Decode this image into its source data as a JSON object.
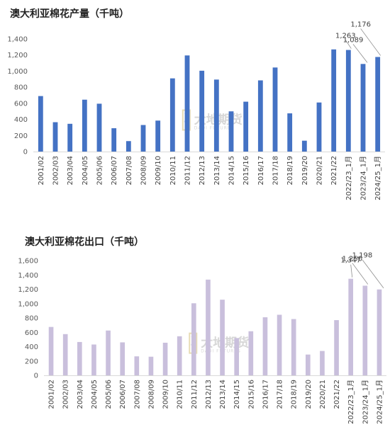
{
  "watermark": {
    "brand": "大地期货",
    "sub": "DADI FUTURES"
  },
  "chart_data": [
    {
      "type": "bar",
      "title": "澳大利亚棉花产量（千吨）",
      "color": "#4472c4",
      "ylim": [
        0,
        1400
      ],
      "yticks": [
        0,
        200,
        400,
        600,
        800,
        1000,
        1200,
        1400
      ],
      "ytick_labels": [
        "0",
        "200",
        "400",
        "600",
        "800",
        "1,000",
        "1,200",
        "1,400"
      ],
      "grid": false,
      "categories": [
        "2001/02",
        "2002/03",
        "2003/04",
        "2004/05",
        "2005/06",
        "2006/07",
        "2007/08",
        "2008/09",
        "2009/10",
        "2010/11",
        "2011/12",
        "2012/13",
        "2013/14",
        "2014/15",
        "2015/16",
        "2016/17",
        "2017/18",
        "2018/19",
        "2019/20",
        "2020/21",
        "2021/22",
        "2022/23_1月",
        "2023/24_1月",
        "2024/25_1月"
      ],
      "values": [
        690,
        365,
        345,
        645,
        595,
        290,
        130,
        330,
        385,
        910,
        1195,
        1005,
        895,
        500,
        620,
        885,
        1045,
        475,
        135,
        610,
        1270,
        1263,
        1089,
        1176
      ],
      "data_labels": {
        "21": "1,263",
        "22": "1,089",
        "23": "1,176"
      }
    },
    {
      "type": "bar",
      "title": "澳大利亚棉花出口（千吨）",
      "color": "#c9bfdc",
      "ylim": [
        0,
        1600
      ],
      "yticks": [
        0,
        200,
        400,
        600,
        800,
        1000,
        1200,
        1400,
        1600
      ],
      "ytick_labels": [
        "0",
        "200",
        "400",
        "600",
        "800",
        "1,000",
        "1,200",
        "1,400",
        "1,600"
      ],
      "grid": false,
      "categories": [
        "2001/02",
        "2002/03",
        "2003/04",
        "2004/05",
        "2005/06",
        "2006/07",
        "2007/08",
        "2008/09",
        "2009/10",
        "2010/11",
        "2011/12",
        "2012/13",
        "2013/14",
        "2014/15",
        "2015/16",
        "2016/17",
        "2017/18",
        "2018/19",
        "2019/20",
        "2020/21",
        "2021/22",
        "2022/23_1月",
        "2023/24_1月",
        "2024/25_1月"
      ],
      "values": [
        675,
        575,
        465,
        430,
        625,
        460,
        265,
        260,
        455,
        545,
        1005,
        1335,
        1055,
        520,
        615,
        810,
        845,
        785,
        290,
        340,
        770,
        1347,
        1250,
        1198
      ],
      "data_labels": {
        "21": "1,347",
        "22": "1,250",
        "23": "1,198"
      }
    }
  ]
}
